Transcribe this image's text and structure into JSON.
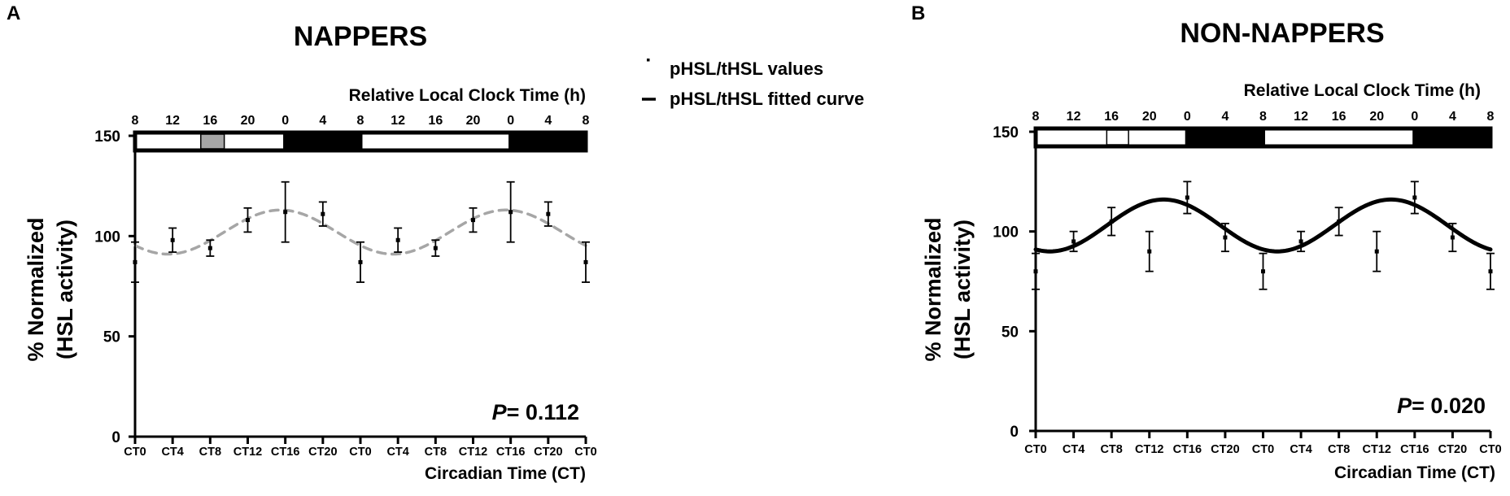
{
  "legend": {
    "values_label": "pHSL/tHSL values",
    "curve_label": "pHSL/tHSL  fitted curve"
  },
  "colors": {
    "ink": "#000000",
    "nappers_curve": "#a6a6a6",
    "nap_marker": "#a6a6a6",
    "bar_light": "#ffffff",
    "bar_dark": "#000000"
  },
  "chart_data": [
    {
      "type": "scatter",
      "panel_label": "A",
      "title": "NAPPERS",
      "top_axis_label": "Relative Local Clock Time (h)",
      "top_ticks": [
        "8",
        "12",
        "16",
        "20",
        "0",
        "4",
        "8",
        "12",
        "16",
        "20",
        "0",
        "4",
        "8"
      ],
      "xlabel": "Circadian Time (CT)",
      "ylabel": [
        "% Normalized",
        "(HSL activity)"
      ],
      "ylim": [
        0,
        150
      ],
      "yticks": [
        0,
        50,
        100,
        150
      ],
      "x_tick_labels": [
        "CT0",
        "CT4",
        "CT8",
        "CT12",
        "CT16",
        "CT20",
        "CT0",
        "CT4",
        "CT8",
        "CT12",
        "CT16",
        "CT20",
        "CT0"
      ],
      "x_range": [
        0,
        48
      ],
      "p_label": "P",
      "p_value": "= 0.112",
      "curve": {
        "style": "dashed",
        "color": "#a6a6a6",
        "mesor": 102,
        "amplitude": 11,
        "peak_ct": 15.5,
        "period": 24
      },
      "light_dark_bar": [
        {
          "phase": "light",
          "start": 0,
          "end": 16
        },
        {
          "phase": "dark",
          "start": 16,
          "end": 24
        },
        {
          "phase": "light",
          "start": 24,
          "end": 40
        },
        {
          "phase": "dark",
          "start": 40,
          "end": 48
        }
      ],
      "nap_marker": {
        "start": 7,
        "end": 9.5,
        "color": "#a6a6a6"
      },
      "points": [
        {
          "x": 0,
          "y": 87,
          "err": 10
        },
        {
          "x": 4,
          "y": 98,
          "err": 6
        },
        {
          "x": 8,
          "y": 94,
          "err": 4
        },
        {
          "x": 12,
          "y": 108,
          "err": 6
        },
        {
          "x": 16,
          "y": 112,
          "err": 15
        },
        {
          "x": 20,
          "y": 111,
          "err": 6
        },
        {
          "x": 24,
          "y": 87,
          "err": 10
        },
        {
          "x": 28,
          "y": 98,
          "err": 6
        },
        {
          "x": 32,
          "y": 94,
          "err": 4
        },
        {
          "x": 36,
          "y": 108,
          "err": 6
        },
        {
          "x": 40,
          "y": 112,
          "err": 15
        },
        {
          "x": 44,
          "y": 111,
          "err": 6
        },
        {
          "x": 48,
          "y": 87,
          "err": 10
        }
      ]
    },
    {
      "type": "scatter",
      "panel_label": "B",
      "title": "NON-NAPPERS",
      "top_axis_label": "Relative Local Clock Time (h)",
      "top_ticks": [
        "8",
        "12",
        "16",
        "20",
        "0",
        "4",
        "8",
        "12",
        "16",
        "20",
        "0",
        "4",
        "8"
      ],
      "xlabel": "Circadian Time (CT)",
      "ylabel": [
        "% Normalized",
        "(HSL activity)"
      ],
      "ylim": [
        0,
        150
      ],
      "yticks": [
        0,
        50,
        100,
        150
      ],
      "x_tick_labels": [
        "CT0",
        "CT4",
        "CT8",
        "CT12",
        "CT16",
        "CT20",
        "CT0",
        "CT4",
        "CT8",
        "CT12",
        "CT16",
        "CT20",
        "CT0"
      ],
      "x_range": [
        0,
        48
      ],
      "p_label": "P",
      "p_value": "= 0.020",
      "curve": {
        "style": "solid",
        "color": "#000000",
        "mesor": 103,
        "amplitude": 13,
        "peak_ct": 13.5,
        "period": 24
      },
      "light_dark_bar": [
        {
          "phase": "light",
          "start": 0,
          "end": 16
        },
        {
          "phase": "dark",
          "start": 16,
          "end": 24
        },
        {
          "phase": "light",
          "start": 24,
          "end": 40
        },
        {
          "phase": "dark",
          "start": 40,
          "end": 48
        }
      ],
      "nap_marker": {
        "start": 7.5,
        "end": 9.8,
        "color": "#ffffff"
      },
      "points": [
        {
          "x": 0,
          "y": 80,
          "err": 9
        },
        {
          "x": 4,
          "y": 95,
          "err": 5
        },
        {
          "x": 8,
          "y": 105,
          "err": 7
        },
        {
          "x": 12,
          "y": 90,
          "err": 10
        },
        {
          "x": 16,
          "y": 117,
          "err": 8
        },
        {
          "x": 20,
          "y": 97,
          "err": 7
        },
        {
          "x": 24,
          "y": 80,
          "err": 9
        },
        {
          "x": 28,
          "y": 95,
          "err": 5
        },
        {
          "x": 32,
          "y": 105,
          "err": 7
        },
        {
          "x": 36,
          "y": 90,
          "err": 10
        },
        {
          "x": 40,
          "y": 117,
          "err": 8
        },
        {
          "x": 44,
          "y": 97,
          "err": 7
        },
        {
          "x": 48,
          "y": 80,
          "err": 9
        }
      ]
    }
  ]
}
